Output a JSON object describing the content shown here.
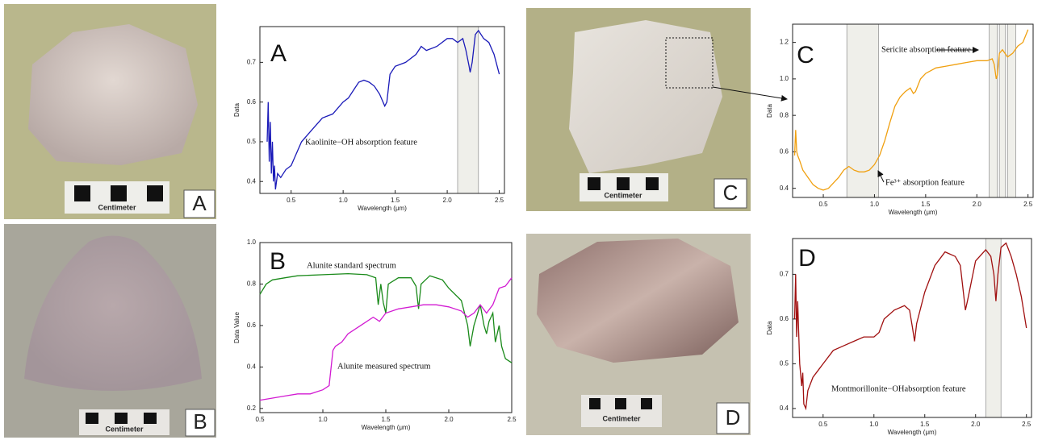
{
  "photos": [
    {
      "label": "A",
      "scale_text": "Centimeter"
    },
    {
      "label": "B",
      "scale_text": "Centimeter"
    },
    {
      "label": "C",
      "scale_text": "Centimeter"
    },
    {
      "label": "D",
      "scale_text": "Centimeter"
    }
  ],
  "chart_data": [
    {
      "type": "line",
      "panel_label": "A",
      "x_label": "Wavelength (μm)",
      "y_label": "Data",
      "x": [
        0.27,
        0.28,
        0.29,
        0.3,
        0.31,
        0.32,
        0.33,
        0.34,
        0.35,
        0.37,
        0.4,
        0.45,
        0.5,
        0.55,
        0.6,
        0.7,
        0.8,
        0.9,
        1.0,
        1.05,
        1.1,
        1.15,
        1.2,
        1.25,
        1.3,
        1.35,
        1.4,
        1.42,
        1.45,
        1.5,
        1.6,
        1.7,
        1.75,
        1.8,
        1.9,
        2.0,
        2.05,
        2.1,
        2.15,
        2.18,
        2.21,
        2.22,
        2.24,
        2.27,
        2.3,
        2.35,
        2.4,
        2.45,
        2.5
      ],
      "series": [
        {
          "color": "#1a1ab8",
          "values": [
            0.5,
            0.6,
            0.45,
            0.55,
            0.42,
            0.5,
            0.4,
            0.44,
            0.38,
            0.42,
            0.41,
            0.43,
            0.44,
            0.47,
            0.5,
            0.53,
            0.56,
            0.57,
            0.6,
            0.61,
            0.63,
            0.65,
            0.655,
            0.65,
            0.64,
            0.62,
            0.59,
            0.6,
            0.67,
            0.69,
            0.7,
            0.72,
            0.74,
            0.73,
            0.74,
            0.76,
            0.76,
            0.75,
            0.76,
            0.73,
            0.69,
            0.675,
            0.7,
            0.77,
            0.78,
            0.76,
            0.75,
            0.72,
            0.67
          ]
        }
      ],
      "bands": [
        [
          2.1,
          2.3
        ]
      ],
      "annotations": [
        "Kaolinite−OH absorption feature"
      ],
      "xlim": [
        0.2,
        2.55
      ],
      "ylim": [
        0.37,
        0.79
      ],
      "xticks": [
        0.5,
        {
          "value": 1,
          "label": "1.0"
        },
        1.5,
        {
          "value": 2,
          "label": "2.0"
        },
        2.5
      ],
      "yticks": [
        0.4,
        0.5,
        0.6,
        0.7
      ],
      "grid": false
    },
    {
      "type": "line",
      "panel_label": "B",
      "x_label": "Wavelength (μm)",
      "y_label": "Data Value",
      "series": [
        {
          "name": "Alunite standard spectrum",
          "color": "#1a8a1a",
          "x": [
            0.5,
            0.55,
            0.6,
            0.7,
            0.8,
            1.0,
            1.2,
            1.35,
            1.42,
            1.44,
            1.46,
            1.48,
            1.5,
            1.52,
            1.6,
            1.7,
            1.74,
            1.76,
            1.78,
            1.85,
            1.95,
            2.0,
            2.1,
            2.15,
            2.17,
            2.2,
            2.25,
            2.28,
            2.3,
            2.32,
            2.35,
            2.37,
            2.4,
            2.42,
            2.45,
            2.5
          ],
          "values": [
            0.75,
            0.8,
            0.82,
            0.83,
            0.84,
            0.845,
            0.85,
            0.845,
            0.83,
            0.7,
            0.8,
            0.71,
            0.66,
            0.8,
            0.83,
            0.83,
            0.79,
            0.68,
            0.8,
            0.84,
            0.82,
            0.78,
            0.72,
            0.6,
            0.5,
            0.6,
            0.7,
            0.6,
            0.56,
            0.62,
            0.66,
            0.52,
            0.6,
            0.5,
            0.44,
            0.42
          ]
        },
        {
          "name": "Alunite measured spectrum",
          "color": "#d21ad2",
          "x": [
            0.5,
            0.6,
            0.7,
            0.8,
            0.9,
            1.0,
            1.05,
            1.08,
            1.1,
            1.15,
            1.2,
            1.3,
            1.4,
            1.45,
            1.5,
            1.6,
            1.7,
            1.8,
            1.9,
            2.0,
            2.1,
            2.15,
            2.2,
            2.25,
            2.3,
            2.35,
            2.4,
            2.45,
            2.5
          ],
          "values": [
            0.24,
            0.25,
            0.26,
            0.27,
            0.27,
            0.29,
            0.31,
            0.48,
            0.5,
            0.52,
            0.56,
            0.6,
            0.64,
            0.62,
            0.66,
            0.68,
            0.69,
            0.7,
            0.7,
            0.69,
            0.67,
            0.64,
            0.66,
            0.7,
            0.66,
            0.7,
            0.78,
            0.79,
            0.83
          ]
        }
      ],
      "xlim": [
        0.5,
        2.5
      ],
      "ylim": [
        0.18,
        1.0
      ],
      "xticks": [
        0.5,
        {
          "value": 1,
          "label": "1.0"
        },
        1.5,
        {
          "value": 2,
          "label": "2.0"
        },
        2.5
      ],
      "yticks": [
        0.2,
        0.4,
        0.6,
        0.8,
        {
          "value": 1,
          "label": "1.0"
        }
      ],
      "grid": false
    },
    {
      "type": "line",
      "panel_label": "C",
      "x_label": "Wavelength (μm)",
      "y_label": "Data",
      "x": [
        0.22,
        0.23,
        0.24,
        0.25,
        0.27,
        0.3,
        0.35,
        0.4,
        0.45,
        0.5,
        0.55,
        0.6,
        0.65,
        0.7,
        0.75,
        0.8,
        0.85,
        0.9,
        0.95,
        1.0,
        1.05,
        1.1,
        1.15,
        1.2,
        1.25,
        1.3,
        1.35,
        1.38,
        1.4,
        1.45,
        1.5,
        1.6,
        1.7,
        1.8,
        1.9,
        2.0,
        2.1,
        2.15,
        2.17,
        2.19,
        2.2,
        2.22,
        2.25,
        2.3,
        2.35,
        2.4,
        2.45,
        2.5
      ],
      "series": [
        {
          "color": "#f0a010",
          "values": [
            0.58,
            0.72,
            0.6,
            0.58,
            0.55,
            0.5,
            0.46,
            0.42,
            0.4,
            0.39,
            0.4,
            0.43,
            0.46,
            0.5,
            0.52,
            0.5,
            0.49,
            0.49,
            0.5,
            0.53,
            0.58,
            0.66,
            0.76,
            0.85,
            0.9,
            0.93,
            0.95,
            0.92,
            0.93,
            1.0,
            1.03,
            1.06,
            1.07,
            1.08,
            1.09,
            1.1,
            1.1,
            1.11,
            1.08,
            1.0,
            1.02,
            1.14,
            1.16,
            1.12,
            1.14,
            1.18,
            1.2,
            1.27
          ]
        }
      ],
      "bands": [
        [
          0.73,
          1.04
        ],
        [
          2.12,
          2.2
        ],
        [
          2.22,
          2.28
        ],
        [
          2.3,
          2.38
        ]
      ],
      "annotations": [
        "Sericite absorption feature",
        "Fe³⁺ absorption feature"
      ],
      "xlim": [
        0.2,
        2.55
      ],
      "ylim": [
        0.35,
        1.3
      ],
      "xticks": [
        0.5,
        {
          "value": 1,
          "label": "1.0"
        },
        1.5,
        {
          "value": 2,
          "label": "2.0"
        },
        2.5
      ],
      "yticks": [
        0.4,
        0.6,
        0.8,
        {
          "value": 1,
          "label": "1.0"
        },
        1.2
      ],
      "grid": false
    },
    {
      "type": "line",
      "panel_label": "D",
      "x_label": "Wavelength (μm)",
      "y_label": "Data",
      "x": [
        0.22,
        0.23,
        0.24,
        0.25,
        0.27,
        0.29,
        0.3,
        0.31,
        0.33,
        0.35,
        0.4,
        0.5,
        0.6,
        0.7,
        0.8,
        0.9,
        1.0,
        1.05,
        1.1,
        1.2,
        1.3,
        1.35,
        1.38,
        1.4,
        1.42,
        1.5,
        1.6,
        1.7,
        1.8,
        1.85,
        1.9,
        1.92,
        2.0,
        2.1,
        2.15,
        2.18,
        2.2,
        2.22,
        2.25,
        2.3,
        2.35,
        2.4,
        2.45,
        2.5
      ],
      "series": [
        {
          "color": "#a01010",
          "values": [
            0.6,
            0.7,
            0.56,
            0.64,
            0.5,
            0.45,
            0.48,
            0.41,
            0.4,
            0.44,
            0.47,
            0.5,
            0.53,
            0.54,
            0.55,
            0.56,
            0.56,
            0.57,
            0.6,
            0.62,
            0.63,
            0.62,
            0.58,
            0.55,
            0.59,
            0.66,
            0.72,
            0.75,
            0.74,
            0.72,
            0.62,
            0.64,
            0.73,
            0.755,
            0.74,
            0.7,
            0.64,
            0.7,
            0.76,
            0.77,
            0.74,
            0.7,
            0.65,
            0.58
          ]
        }
      ],
      "bands": [
        [
          2.1,
          2.25
        ]
      ],
      "annotations": [
        "Montmorillonite−OHabsorption feature"
      ],
      "xlim": [
        0.2,
        2.55
      ],
      "ylim": [
        0.38,
        0.78
      ],
      "xticks": [
        0.5,
        {
          "value": 1,
          "label": "1.0"
        },
        1.5,
        {
          "value": 2,
          "label": "2.0"
        },
        2.5
      ],
      "yticks": [
        0.4,
        0.5,
        0.6,
        0.7
      ],
      "grid": false
    }
  ]
}
